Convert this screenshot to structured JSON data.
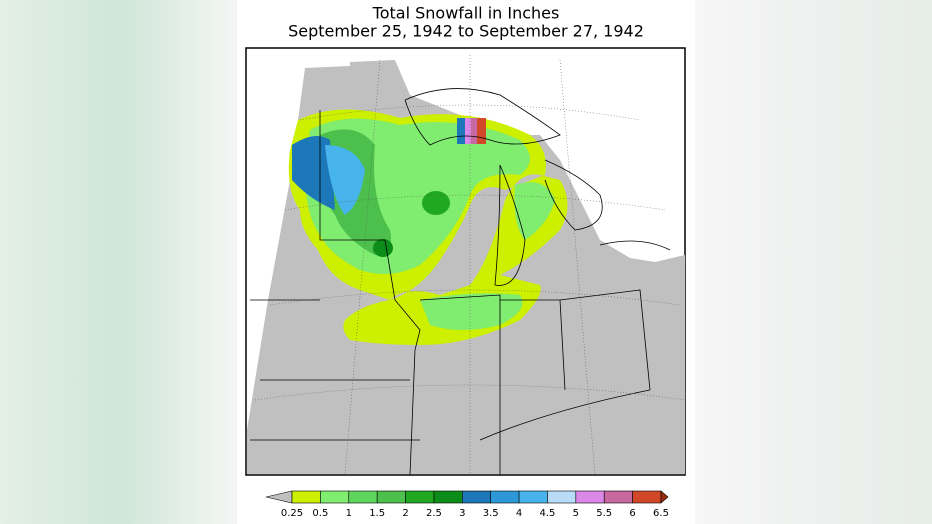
{
  "title": "Total Snowfall in Inches",
  "subtitle": "September 25, 1942 to September 27, 1942",
  "colorbar": {
    "ticks": [
      0.25,
      0.5,
      1,
      1.5,
      2,
      2.5,
      3,
      3.5,
      4,
      4.5,
      5,
      5.5,
      6,
      6.5
    ],
    "colors": [
      "#c0c0c0",
      "#ccf000",
      "#80ec70",
      "#5ed65e",
      "#4cbf4c",
      "#20a820",
      "#0c8c18",
      "#1c78b8",
      "#2c98d8",
      "#48b4ec",
      "#b8dcf8",
      "#dc88e8",
      "#c868a0",
      "#d04828",
      "#982c10"
    ]
  }
}
